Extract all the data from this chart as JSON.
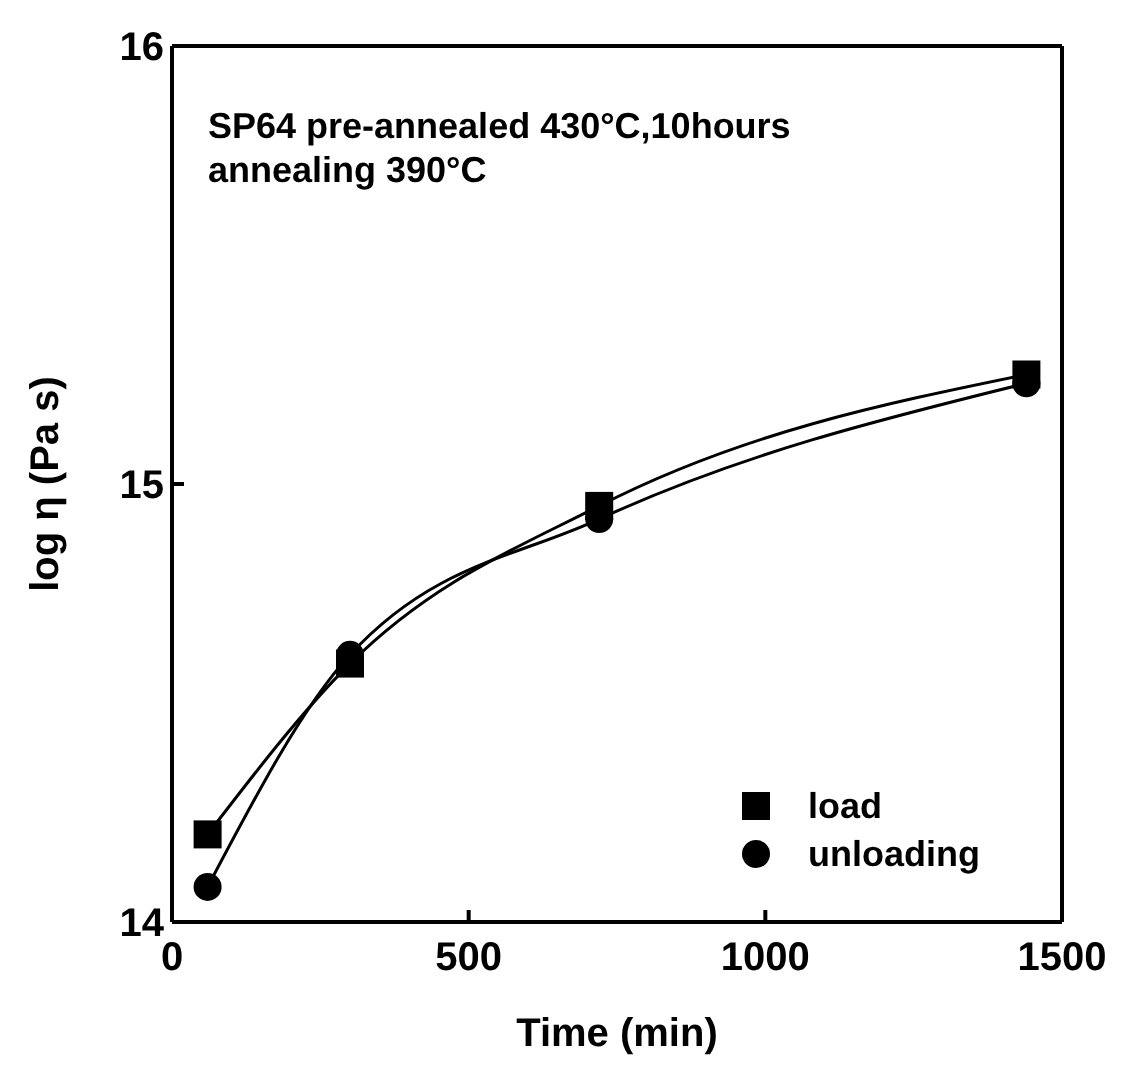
{
  "chart_data": {
    "type": "line",
    "title": "SP64 pre-annealed 430°C,10hours",
    "subtitle": "annealing 390°C",
    "xlabel": "Time (min)",
    "ylabel": "log η (Pa s)",
    "x": [
      60,
      300,
      720,
      1440
    ],
    "series": [
      {
        "name": "load",
        "color": "#000000",
        "marker": "square",
        "values": [
          14.2,
          14.59,
          14.95,
          15.25
        ]
      },
      {
        "name": "unloading",
        "color": "#000000",
        "marker": "circle",
        "values": [
          14.08,
          14.61,
          14.92,
          15.23
        ]
      }
    ],
    "xlim": [
      0,
      1500
    ],
    "xticks": [
      0,
      500,
      1000,
      1500
    ],
    "ylim": [
      14,
      16
    ],
    "yticks": [
      14,
      15,
      16
    ],
    "grid": false,
    "legend": "bottom right",
    "line_style": "solid"
  }
}
